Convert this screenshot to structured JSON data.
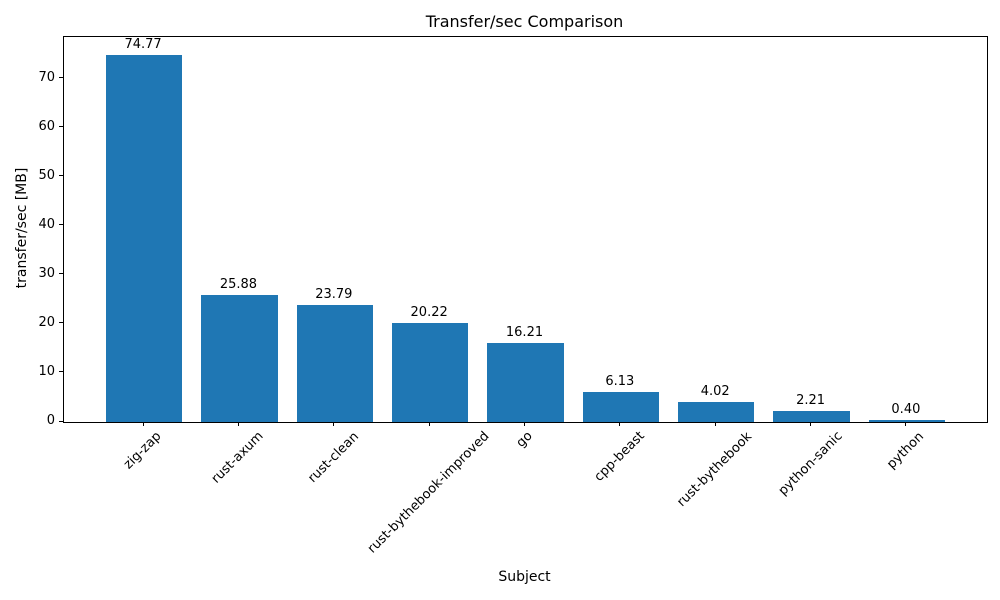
{
  "chart_data": {
    "type": "bar",
    "title": "Transfer/sec Comparison",
    "xlabel": "Subject",
    "ylabel": "transfer/sec [MB]",
    "categories": [
      "zig-zap",
      "rust-axum",
      "rust-clean",
      "rust-bythebook-improved",
      "go",
      "cpp-beast",
      "rust-bythebook",
      "python-sanic",
      "python"
    ],
    "values": [
      74.77,
      25.88,
      23.79,
      20.22,
      16.21,
      6.13,
      4.02,
      2.21,
      0.4
    ],
    "value_labels": [
      "74.77",
      "25.88",
      "23.79",
      "20.22",
      "16.21",
      "6.13",
      "4.02",
      "2.21",
      "0.40"
    ],
    "yticks": [
      0,
      10,
      20,
      30,
      40,
      50,
      60,
      70
    ],
    "ylim": [
      0,
      78.51
    ],
    "xtick_rotation_deg": 45,
    "bar_color": "#1f77b4",
    "bar_width_fraction": 0.8,
    "grid": false,
    "legend": null
  }
}
